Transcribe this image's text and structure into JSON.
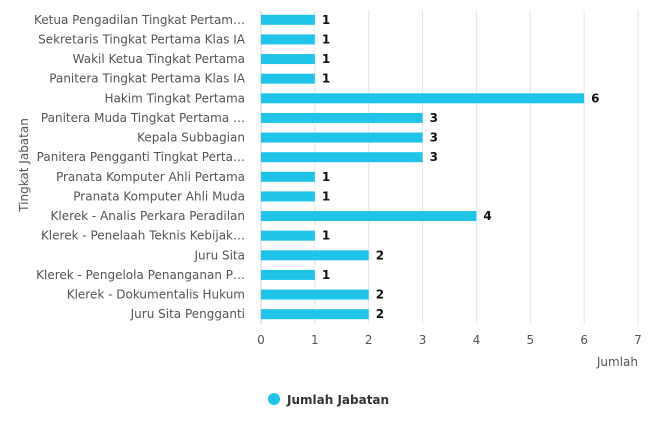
{
  "chart_data": {
    "type": "bar",
    "orientation": "horizontal",
    "categories": [
      "Ketua Pengadilan Tingkat Pertam…",
      "Sekretaris Tingkat Pertama Klas IA",
      "Wakil Ketua Tingkat Pertama",
      "Panitera Tingkat Pertama Klas IA",
      "Hakim Tingkat Pertama",
      "Panitera Muda Tingkat Pertama …",
      "Kepala Subbagian",
      "Panitera Pengganti Tingkat Perta…",
      "Pranata Komputer Ahli Pertama",
      "Pranata Komputer Ahli Muda",
      "Klerek - Analis Perkara Peradilan",
      "Klerek - Penelaah Teknis Kebijak…",
      "Juru Sita",
      "Klerek - Pengelola Penanganan P…",
      "Klerek - Dokumentalis Hukum",
      "Juru Sita Pengganti"
    ],
    "series": [
      {
        "name": "Jumlah Jabatan",
        "values": [
          1,
          1,
          1,
          1,
          6,
          3,
          3,
          3,
          1,
          1,
          4,
          1,
          2,
          1,
          2,
          2
        ]
      }
    ],
    "xlabel": "Jumlah",
    "ylabel": "Tingkat Jabatan",
    "xlim": [
      0,
      7
    ],
    "xticks": [
      "0",
      "1",
      "2",
      "3",
      "4",
      "5",
      "6",
      "7"
    ],
    "grid": true,
    "legend_position": "bottom-center",
    "colors": {
      "bar": "#20c4e8",
      "grid": "#e6e6e6",
      "axis": "#cccccc"
    }
  }
}
